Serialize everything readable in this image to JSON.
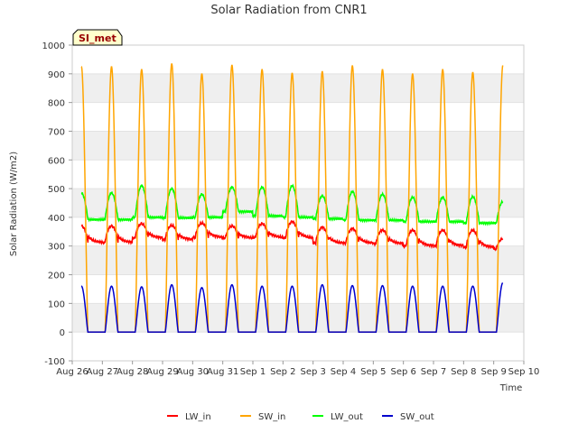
{
  "chart_data": {
    "type": "line",
    "title": "Solar Radiation from CNR1",
    "xlabel": "Time",
    "ylabel": "Solar Radiation (W/m2)",
    "badge": "SI_met",
    "xlim": [
      0,
      15
    ],
    "ylim": [
      -100,
      1000
    ],
    "yticks": [
      -100,
      0,
      100,
      200,
      300,
      400,
      500,
      600,
      700,
      800,
      900,
      1000
    ],
    "xtick_labels": [
      "Aug 26",
      "Aug 27",
      "Aug 28",
      "Aug 29",
      "Aug 30",
      "Aug 31",
      "Sep 1",
      "Sep 2",
      "Sep 3",
      "Sep 4",
      "Sep 5",
      "Sep 6",
      "Sep 7",
      "Sep 8",
      "Sep 9",
      "Sep 10"
    ],
    "data_start": 0.3,
    "data_end": 14.3,
    "daily": {
      "day_offset": [
        1,
        2,
        3,
        4,
        5,
        6,
        7,
        8,
        9,
        10,
        11,
        12,
        13,
        14
      ],
      "sw_in_peak": [
        925,
        915,
        935,
        900,
        930,
        915,
        902,
        908,
        928,
        915,
        900,
        915,
        905,
        930
      ],
      "sw_out_peak": [
        160,
        158,
        165,
        155,
        165,
        160,
        160,
        165,
        162,
        162,
        160,
        160,
        160,
        172
      ],
      "lw_out_peak": [
        485,
        510,
        500,
        480,
        505,
        505,
        510,
        475,
        490,
        480,
        470,
        470,
        472,
        455
      ],
      "lw_out_night": [
        392,
        400,
        398,
        400,
        420,
        405,
        400,
        395,
        390,
        390,
        385,
        385,
        380,
        380
      ],
      "lw_in_peak": [
        370,
        378,
        372,
        380,
        370,
        378,
        385,
        365,
        360,
        355,
        355,
        355,
        355,
        325
      ],
      "lw_in_night": [
        312,
        328,
        322,
        330,
        328,
        330,
        328,
        310,
        310,
        308,
        300,
        300,
        295,
        290
      ]
    },
    "series": [
      {
        "name": "LW_in",
        "color": "#ff0000"
      },
      {
        "name": "SW_in",
        "color": "#ffa500"
      },
      {
        "name": "LW_out",
        "color": "#00ff00"
      },
      {
        "name": "SW_out",
        "color": "#0000cc"
      }
    ]
  }
}
